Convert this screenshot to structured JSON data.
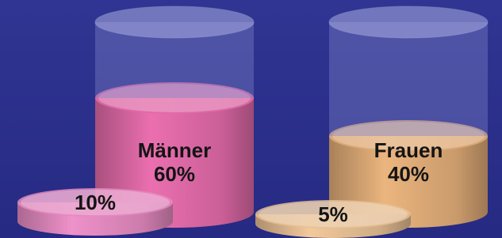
{
  "chart_data": {
    "type": "cylinder",
    "categories": [
      "Männer",
      "Frauen"
    ],
    "values": [
      60,
      40
    ],
    "value_labels": [
      "60%",
      "40%"
    ],
    "colors": [
      "#e06aa8",
      "#e0ac78"
    ],
    "discs": {
      "values": [
        10,
        5
      ],
      "value_labels": [
        "10%",
        "5%"
      ],
      "colors": [
        "#e48ac0",
        "#e6bf94"
      ]
    }
  }
}
